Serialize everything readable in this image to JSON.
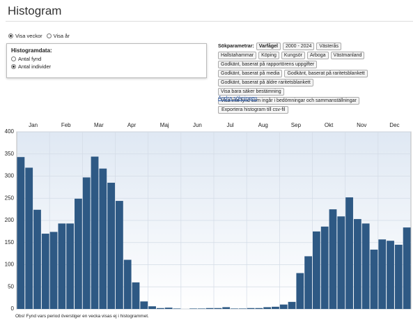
{
  "header": {
    "title": "Histogram"
  },
  "period": {
    "options": [
      "Visa veckor",
      "Visa år"
    ],
    "selected": 0
  },
  "histogram_data": {
    "title": "Histogramdata:",
    "options": [
      "Antal fynd",
      "Antal individer"
    ],
    "selected": 1
  },
  "search": {
    "label": "Sökparametrar:",
    "tags": [
      "Varfågel",
      "2000 - 2024",
      "Västerås",
      "Hallstahammar",
      "Köping",
      "Kungsör",
      "Arboga",
      "Västmanland",
      "Godkänt, baserat på rapportörens uppgifter",
      "Godkänt, baserat på media",
      "Godkänt, baserat på raritetsblankett",
      "Godkänt, baserat på äldre raritetsblankett",
      "Visa bara säker bestämning",
      "Visa inte fynd som ingår i bedömningar och sammanställningar",
      "Visa skyddade fynd"
    ],
    "change_link": "Ändra sökningen"
  },
  "export_button": "Exportera histogram till csv-fil",
  "chart_data": {
    "type": "bar",
    "color": "#2e5984",
    "grid": true,
    "months": [
      "Jan",
      "Feb",
      "Mar",
      "Apr",
      "Maj",
      "Jun",
      "Jul",
      "Aug",
      "Sep",
      "Okt",
      "Nov",
      "Dec"
    ],
    "values": [
      343,
      319,
      224,
      170,
      174,
      193,
      193,
      249,
      297,
      344,
      317,
      285,
      244,
      111,
      60,
      17,
      6,
      2,
      3,
      1,
      0,
      1,
      1,
      2,
      2,
      4,
      1,
      1,
      2,
      2,
      4,
      5,
      10,
      16,
      81,
      119,
      175,
      186,
      225,
      209,
      252,
      203,
      193,
      134,
      157,
      154,
      145,
      184
    ],
    "ylim": [
      0,
      400
    ],
    "yticks": [
      0,
      50,
      100,
      150,
      200,
      250,
      300,
      350,
      400
    ]
  },
  "footnote": "Obs! Fynd vars period överstiger en vecka visas ej i histogrammet."
}
